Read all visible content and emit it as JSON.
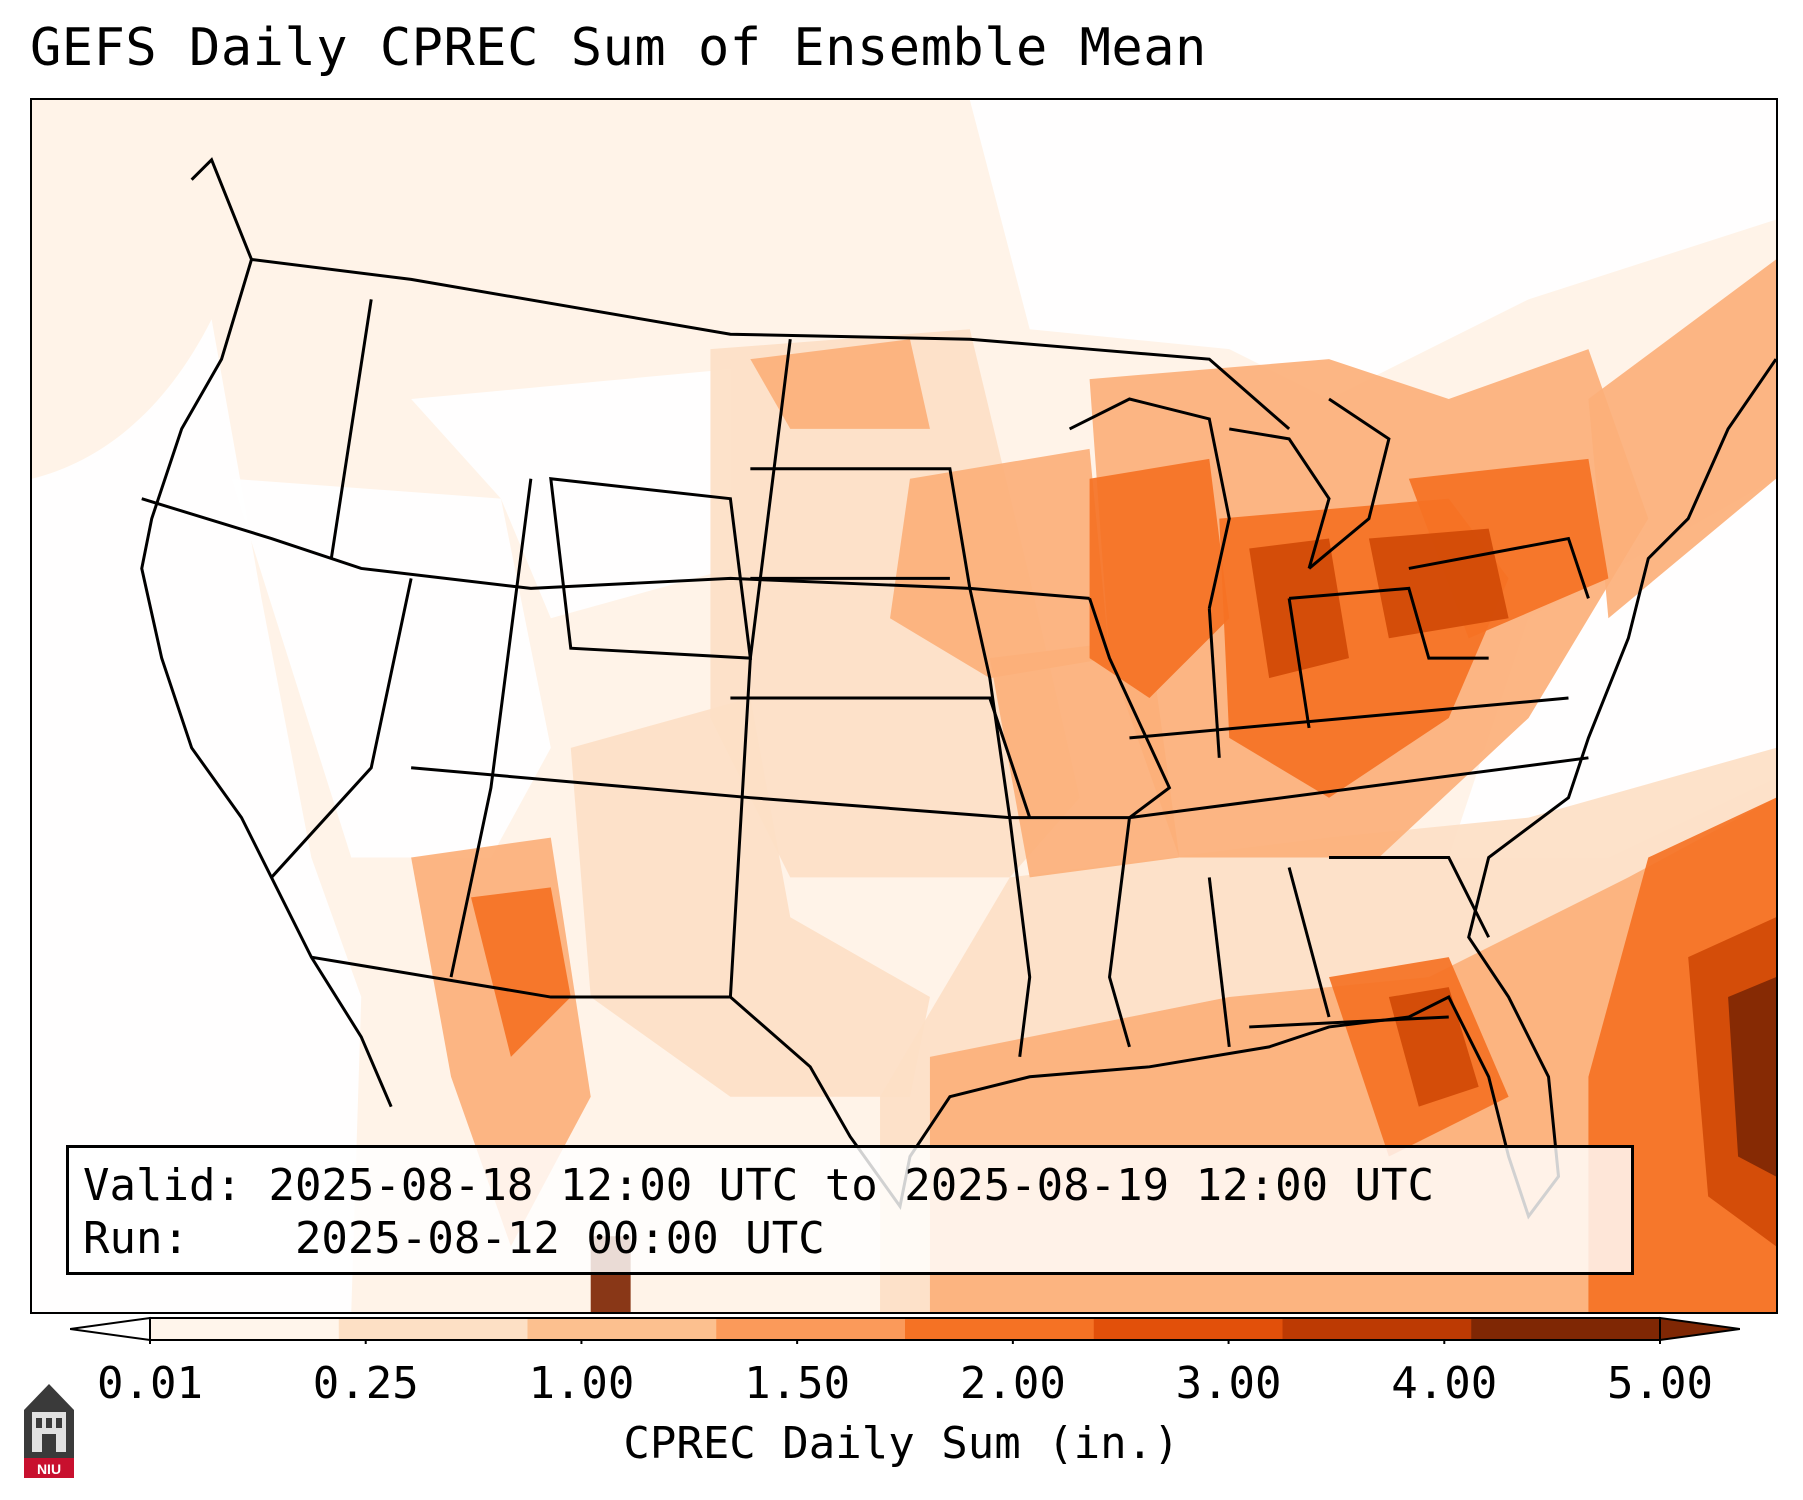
{
  "title": "GEFS Daily CPREC Sum of Ensemble Mean",
  "info": {
    "valid_label": "Valid:",
    "valid_value": "2025-08-18 12:00 UTC to 2025-08-19 12:00 UTC",
    "run_label": "Run:",
    "run_value": "2025-08-12 00:00 UTC"
  },
  "colorbar": {
    "label": "CPREC Daily Sum (in.)",
    "ticks": [
      "0.01",
      "0.25",
      "1.00",
      "1.50",
      "2.00",
      "3.00",
      "4.00",
      "5.00"
    ],
    "colors": [
      "#fff5eb",
      "#fde0c5",
      "#fcc08f",
      "#fb9a5a",
      "#f57224",
      "#e2500a",
      "#bd3a03",
      "#7f2704"
    ]
  },
  "logo": {
    "text": "NIU",
    "colors": {
      "shield": "#3a3a3a",
      "band": "#c8102e"
    }
  },
  "map": {
    "region": "Continental United States",
    "field_colors": {
      "background": "#fff3e8",
      "light": "#fde0c5",
      "medium": "#fcb07a",
      "heavy": "#f57224",
      "very_heavy": "#d04a07",
      "extreme": "#7f2704",
      "land_white": "#ffffff"
    }
  }
}
